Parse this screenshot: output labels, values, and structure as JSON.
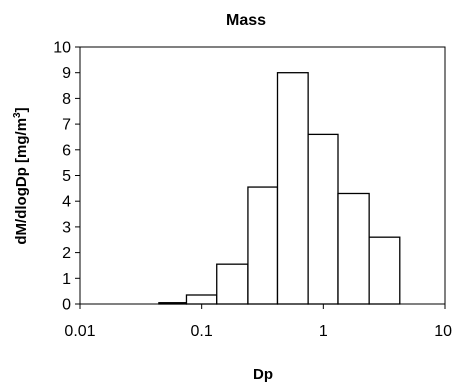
{
  "chart_data": {
    "type": "bar",
    "title": "Mass",
    "xlabel": "Dp",
    "ylabel_main": "dM/dlogDp  [mg/m",
    "ylabel_sup": "3",
    "ylabel_end": "]",
    "x_scale": "log",
    "xlim": [
      0.01,
      10
    ],
    "ylim": [
      0,
      10
    ],
    "x_ticks": [
      {
        "value": 0.01,
        "label": "0.01"
      },
      {
        "value": 0.1,
        "label": "0.1"
      },
      {
        "value": 1,
        "label": "1"
      },
      {
        "value": 10,
        "label": "10"
      }
    ],
    "y_ticks": [
      {
        "value": 0,
        "label": "0"
      },
      {
        "value": 1,
        "label": "1"
      },
      {
        "value": 2,
        "label": "2"
      },
      {
        "value": 3,
        "label": "3"
      },
      {
        "value": 4,
        "label": "4"
      },
      {
        "value": 5,
        "label": "5"
      },
      {
        "value": 6,
        "label": "6"
      },
      {
        "value": 7,
        "label": "7"
      },
      {
        "value": 8,
        "label": "8"
      },
      {
        "value": 9,
        "label": "9"
      },
      {
        "value": 10,
        "label": "10"
      }
    ],
    "bars": [
      {
        "x0": 0.0445,
        "x1": 0.075,
        "value": 0.05
      },
      {
        "x0": 0.075,
        "x1": 0.133,
        "value": 0.35
      },
      {
        "x0": 0.133,
        "x1": 0.24,
        "value": 1.55
      },
      {
        "x0": 0.24,
        "x1": 0.42,
        "value": 4.55
      },
      {
        "x0": 0.42,
        "x1": 0.75,
        "value": 9.0
      },
      {
        "x0": 0.75,
        "x1": 1.32,
        "value": 6.6
      },
      {
        "x0": 1.32,
        "x1": 2.38,
        "value": 4.3
      },
      {
        "x0": 2.38,
        "x1": 4.25,
        "value": 2.6
      }
    ],
    "grid": false,
    "legend": "none"
  }
}
